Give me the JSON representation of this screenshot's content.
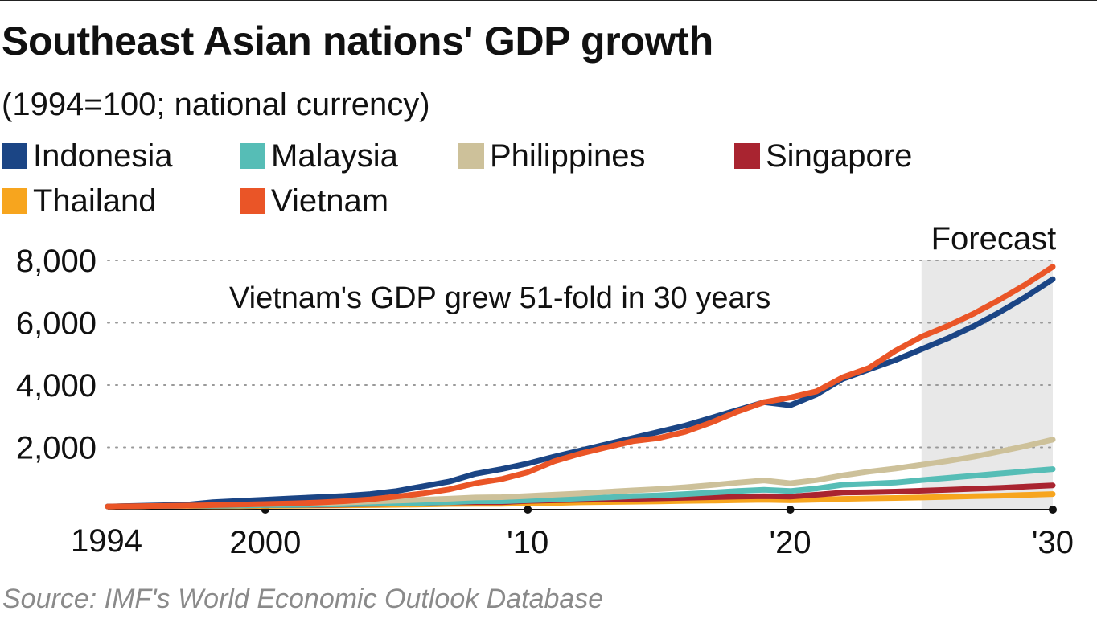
{
  "header": {
    "title": "Southeast Asian nations' GDP growth",
    "subtitle": "(1994=100; national currency)"
  },
  "source": "Source: IMF's World Economic Outlook Database",
  "chart_data": {
    "type": "line",
    "title": "Southeast Asian nations' GDP growth",
    "subtitle": "(1994=100; national currency)",
    "xlabel": "",
    "ylabel": "",
    "xlim": [
      1994,
      2030
    ],
    "ylim": [
      0,
      8000
    ],
    "x_ticks": [
      1994,
      2000,
      2010,
      2020,
      2030
    ],
    "x_tick_labels": [
      "1994",
      "2000",
      "'10",
      "'20",
      "'30"
    ],
    "y_ticks": [
      2000,
      4000,
      6000,
      8000
    ],
    "y_tick_labels": [
      "2,000",
      "4,000",
      "6,000",
      "8,000"
    ],
    "grid": "horizontal dotted",
    "legend_position": "top",
    "forecast": {
      "label": "Forecast",
      "start": 2025,
      "end": 2030
    },
    "annotation": "Vietnam's GDP grew 51-fold in 30 years",
    "x": [
      1994,
      1995,
      1996,
      1997,
      1998,
      1999,
      2000,
      2001,
      2002,
      2003,
      2004,
      2005,
      2006,
      2007,
      2008,
      2009,
      2010,
      2011,
      2012,
      2013,
      2014,
      2015,
      2016,
      2017,
      2018,
      2019,
      2020,
      2021,
      2022,
      2023,
      2024,
      2025,
      2026,
      2027,
      2028,
      2029,
      2030
    ],
    "series": [
      {
        "name": "Indonesia",
        "color": "#1b4585",
        "values": [
          100,
          120,
          140,
          160,
          240,
          280,
          320,
          360,
          400,
          440,
          500,
          600,
          750,
          900,
          1150,
          1300,
          1480,
          1700,
          1900,
          2100,
          2300,
          2500,
          2700,
          2950,
          3200,
          3450,
          3350,
          3700,
          4200,
          4500,
          4800,
          5150,
          5500,
          5900,
          6350,
          6850,
          7400
        ]
      },
      {
        "name": "Malaysia",
        "color": "#56bdb6",
        "values": [
          100,
          110,
          120,
          130,
          125,
          130,
          145,
          150,
          160,
          170,
          185,
          200,
          220,
          240,
          270,
          270,
          300,
          330,
          360,
          390,
          430,
          460,
          500,
          550,
          600,
          640,
          600,
          680,
          800,
          830,
          870,
          950,
          1020,
          1090,
          1160,
          1230,
          1300
        ]
      },
      {
        "name": "Philippines",
        "color": "#cdc19a",
        "values": [
          100,
          110,
          125,
          140,
          150,
          160,
          180,
          195,
          210,
          230,
          260,
          290,
          320,
          350,
          390,
          400,
          440,
          480,
          520,
          570,
          620,
          660,
          720,
          790,
          870,
          940,
          850,
          950,
          1100,
          1220,
          1320,
          1440,
          1560,
          1700,
          1870,
          2050,
          2250
        ]
      },
      {
        "name": "Singapore",
        "color": "#a92430",
        "values": [
          100,
          110,
          120,
          130,
          125,
          130,
          145,
          145,
          150,
          160,
          180,
          195,
          215,
          235,
          240,
          240,
          280,
          300,
          315,
          330,
          345,
          360,
          380,
          400,
          420,
          430,
          420,
          480,
          550,
          560,
          580,
          610,
          640,
          670,
          700,
          740,
          780
        ]
      },
      {
        "name": "Thailand",
        "color": "#f7a51e",
        "values": [
          100,
          110,
          120,
          118,
          110,
          112,
          118,
          122,
          128,
          135,
          145,
          155,
          165,
          180,
          185,
          185,
          205,
          215,
          235,
          245,
          255,
          265,
          280,
          290,
          305,
          315,
          300,
          320,
          345,
          360,
          375,
          390,
          410,
          430,
          450,
          475,
          500
        ]
      },
      {
        "name": "Vietnam",
        "color": "#ea5527",
        "values": [
          100,
          110,
          120,
          130,
          145,
          160,
          180,
          200,
          230,
          270,
          330,
          420,
          520,
          650,
          850,
          980,
          1200,
          1550,
          1800,
          2000,
          2200,
          2300,
          2500,
          2800,
          3150,
          3450,
          3600,
          3800,
          4250,
          4550,
          5100,
          5550,
          5900,
          6300,
          6750,
          7250,
          7800
        ]
      }
    ]
  }
}
